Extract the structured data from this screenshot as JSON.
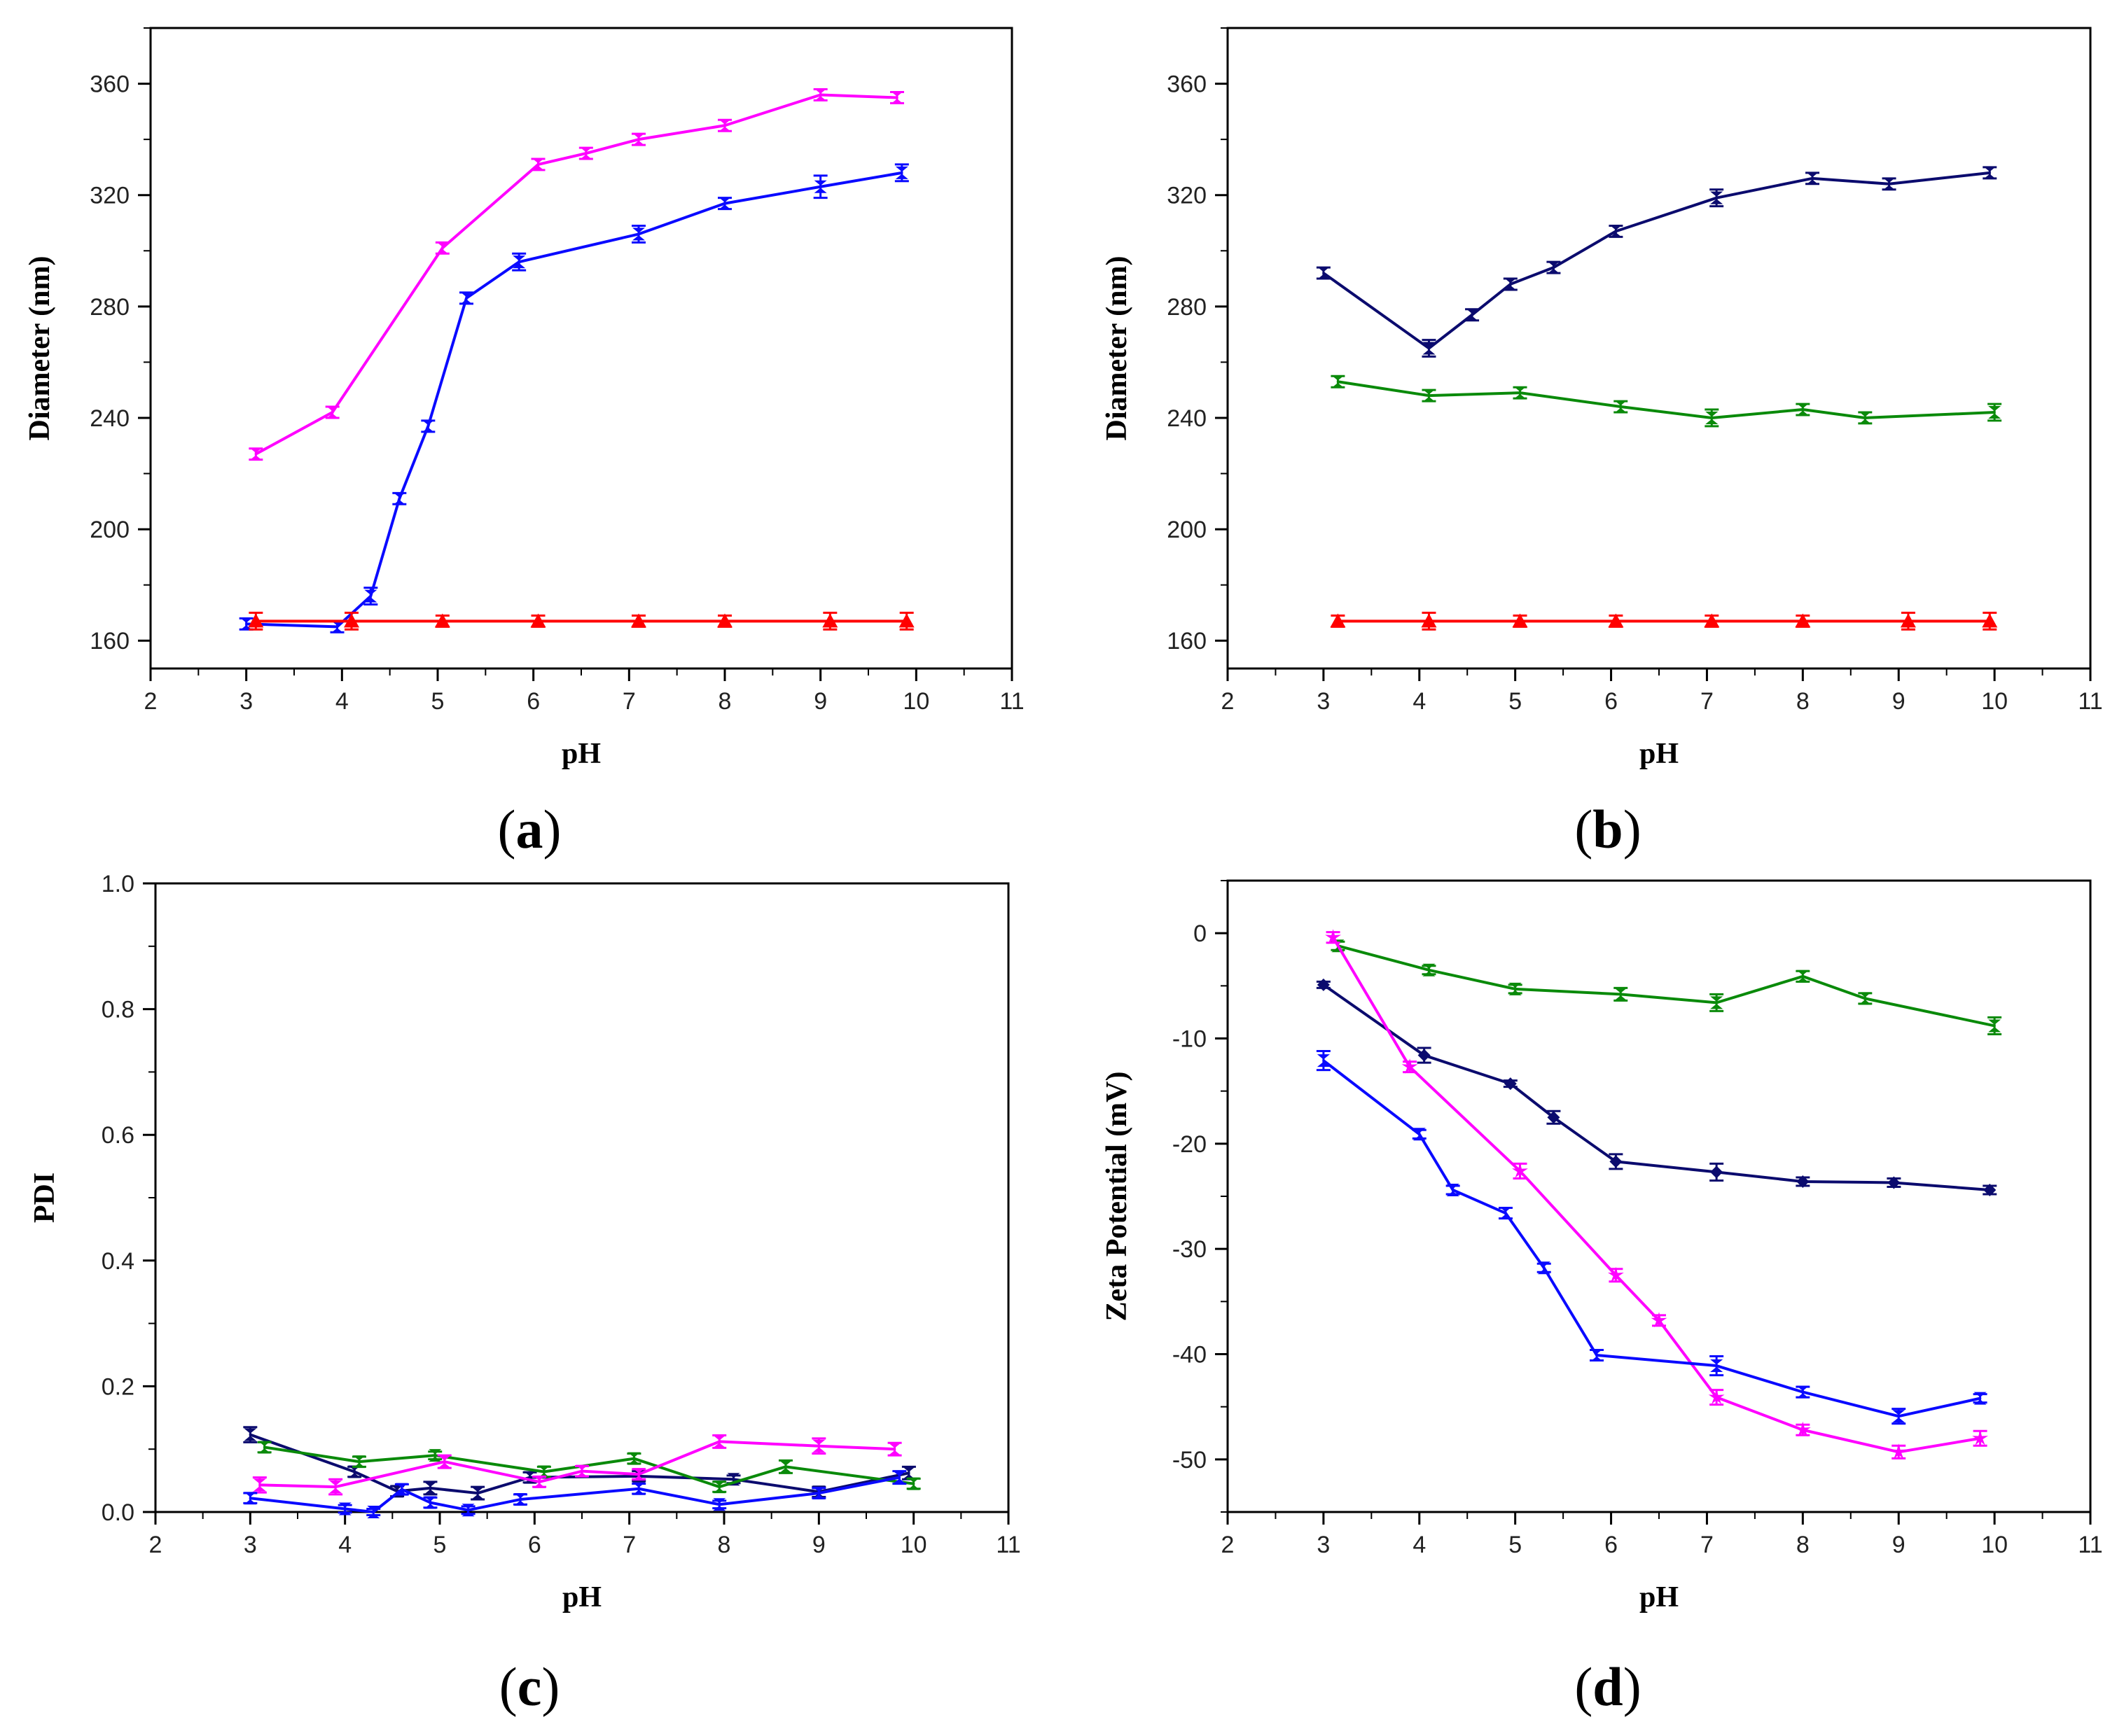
{
  "figure": {
    "colors": {
      "magenta": "#ff00ff",
      "blue": "#0a0aff",
      "red": "#ff0000",
      "navy": "#0b0b6e",
      "green": "#0a8a0a"
    }
  },
  "chart_data": [
    {
      "id": "a",
      "panel_label": "a",
      "type": "line",
      "xlabel": "pH",
      "ylabel": "Diameter (nm)",
      "xlim": [
        2,
        11
      ],
      "ylim": [
        150,
        380
      ],
      "xticks": [
        2,
        3,
        4,
        5,
        6,
        7,
        8,
        9,
        10,
        11
      ],
      "yticks": [
        160,
        200,
        240,
        280,
        320,
        360
      ],
      "series": [
        {
          "name": "magenta",
          "color": "#ff00ff",
          "marker": "hourglass",
          "x": [
            3.1,
            3.9,
            5.05,
            6.05,
            6.55,
            7.1,
            8.0,
            9.0,
            9.8
          ],
          "y": [
            227,
            242,
            301,
            331,
            335,
            340,
            345,
            356,
            355
          ],
          "err": [
            2,
            2,
            2,
            2,
            2,
            2,
            2,
            2,
            2
          ]
        },
        {
          "name": "blue",
          "color": "#0a0aff",
          "marker": "hourglass",
          "x": [
            3.0,
            3.95,
            4.3,
            4.6,
            4.9,
            5.3,
            5.85,
            7.1,
            8.0,
            9.0,
            9.85
          ],
          "y": [
            166,
            165,
            176,
            211,
            237,
            283,
            296,
            306,
            317,
            323,
            328
          ],
          "err": [
            2,
            2,
            3,
            2,
            2,
            2,
            3,
            3,
            2,
            4,
            3
          ]
        },
        {
          "name": "red",
          "color": "#ff0000",
          "marker": "triangle",
          "x": [
            3.1,
            4.1,
            5.05,
            6.05,
            7.1,
            8.0,
            9.1,
            9.9
          ],
          "y": [
            167,
            167,
            167,
            167,
            167,
            167,
            167,
            167
          ],
          "err": [
            3,
            3,
            2,
            2,
            2,
            2,
            3,
            3
          ]
        }
      ]
    },
    {
      "id": "b",
      "panel_label": "b",
      "type": "line",
      "xlabel": "pH",
      "ylabel": "Diameter (nm)",
      "xlim": [
        2,
        11
      ],
      "ylim": [
        150,
        380
      ],
      "xticks": [
        2,
        3,
        4,
        5,
        6,
        7,
        8,
        9,
        10,
        11
      ],
      "yticks": [
        160,
        200,
        240,
        280,
        320,
        360
      ],
      "series": [
        {
          "name": "navy",
          "color": "#0b0b6e",
          "marker": "hourglass",
          "x": [
            3.0,
            4.1,
            4.55,
            4.95,
            5.4,
            6.05,
            7.1,
            8.1,
            8.9,
            9.95
          ],
          "y": [
            292,
            265,
            277,
            288,
            294,
            307,
            319,
            326,
            324,
            328
          ],
          "err": [
            2,
            3,
            2,
            2,
            2,
            2,
            3,
            2,
            2,
            2
          ]
        },
        {
          "name": "green",
          "color": "#0a8a0a",
          "marker": "hourglass",
          "x": [
            3.15,
            4.1,
            5.05,
            6.1,
            7.05,
            8.0,
            8.65,
            10.0
          ],
          "y": [
            253,
            248,
            249,
            244,
            240,
            243,
            240,
            242
          ],
          "err": [
            2,
            2,
            2,
            2,
            3,
            2,
            2,
            3
          ]
        },
        {
          "name": "red",
          "color": "#ff0000",
          "marker": "triangle",
          "x": [
            3.15,
            4.1,
            5.05,
            6.05,
            7.05,
            8.0,
            9.1,
            9.95
          ],
          "y": [
            167,
            167,
            167,
            167,
            167,
            167,
            167,
            167
          ],
          "err": [
            2,
            3,
            2,
            2,
            2,
            2,
            3,
            3
          ]
        }
      ]
    },
    {
      "id": "c",
      "panel_label": "c",
      "type": "line",
      "xlabel": "pH",
      "ylabel": "PDI",
      "xlim": [
        2,
        11
      ],
      "ylim": [
        0.0,
        1.0
      ],
      "xticks": [
        2,
        3,
        4,
        5,
        6,
        7,
        8,
        9,
        10,
        11
      ],
      "yticks": [
        0.0,
        0.2,
        0.4,
        0.6,
        0.8,
        1.0
      ],
      "series": [
        {
          "name": "navy",
          "color": "#0b0b6e",
          "marker": "hourglass",
          "x": [
            3.0,
            4.1,
            4.55,
            4.9,
            5.4,
            5.95,
            7.1,
            8.1,
            9.0,
            9.95
          ],
          "y": [
            0.123,
            0.064,
            0.033,
            0.038,
            0.03,
            0.055,
            0.057,
            0.052,
            0.032,
            0.062
          ],
          "err": [
            0.012,
            0.008,
            0.008,
            0.01,
            0.01,
            0.008,
            0.008,
            0.006,
            0.008,
            0.01
          ]
        },
        {
          "name": "green",
          "color": "#0a8a0a",
          "marker": "hourglass",
          "x": [
            3.15,
            4.15,
            4.95,
            6.1,
            7.05,
            7.95,
            8.65,
            10.0
          ],
          "y": [
            0.103,
            0.08,
            0.09,
            0.064,
            0.085,
            0.04,
            0.072,
            0.045
          ],
          "err": [
            0.008,
            0.008,
            0.006,
            0.008,
            0.008,
            0.008,
            0.01,
            0.008
          ]
        },
        {
          "name": "magenta",
          "color": "#ff00ff",
          "marker": "hourglass",
          "x": [
            3.1,
            3.9,
            5.05,
            6.05,
            6.5,
            7.1,
            7.95,
            9.0,
            9.8
          ],
          "y": [
            0.043,
            0.04,
            0.08,
            0.048,
            0.065,
            0.06,
            0.112,
            0.105,
            0.1
          ],
          "err": [
            0.012,
            0.012,
            0.01,
            0.008,
            0.008,
            0.008,
            0.01,
            0.012,
            0.01
          ]
        },
        {
          "name": "blue",
          "color": "#0a0aff",
          "marker": "hourglass",
          "x": [
            3.0,
            4.0,
            4.3,
            4.6,
            4.9,
            5.3,
            5.85,
            7.1,
            7.95,
            9.0,
            9.85
          ],
          "y": [
            0.022,
            0.005,
            0.0,
            0.036,
            0.015,
            0.003,
            0.02,
            0.037,
            0.012,
            0.03,
            0.055
          ],
          "err": [
            0.008,
            0.006,
            0.005,
            0.008,
            0.008,
            0.006,
            0.008,
            0.008,
            0.006,
            0.008,
            0.01
          ]
        }
      ]
    },
    {
      "id": "d",
      "panel_label": "d",
      "type": "line",
      "xlabel": "pH",
      "ylabel": "Zeta Potential (mV)",
      "xlim": [
        2,
        11
      ],
      "ylim": [
        -55,
        5
      ],
      "xticks": [
        2,
        3,
        4,
        5,
        6,
        7,
        8,
        9,
        10,
        11
      ],
      "yticks": [
        0,
        -10,
        -20,
        -30,
        -40,
        -50
      ],
      "series": [
        {
          "name": "green",
          "color": "#0a8a0a",
          "marker": "hourglass",
          "x": [
            3.15,
            4.1,
            5.0,
            6.1,
            7.1,
            8.0,
            8.65,
            10.0
          ],
          "y": [
            -1.2,
            -3.5,
            -5.3,
            -5.8,
            -6.6,
            -4.1,
            -6.2,
            -8.8
          ],
          "err": [
            0.4,
            0.4,
            0.4,
            0.6,
            0.8,
            0.5,
            0.5,
            0.8
          ]
        },
        {
          "name": "navy",
          "color": "#0b0b6e",
          "marker": "diamond",
          "x": [
            3.0,
            4.05,
            4.95,
            5.4,
            6.05,
            7.1,
            8.0,
            8.95,
            9.95
          ],
          "y": [
            -4.9,
            -11.6,
            -14.3,
            -17.5,
            -21.7,
            -22.7,
            -23.6,
            -23.7,
            -24.4
          ],
          "err": [
            0.3,
            0.7,
            0.3,
            0.6,
            0.7,
            0.8,
            0.4,
            0.4,
            0.4
          ]
        },
        {
          "name": "magenta",
          "color": "#ff00ff",
          "marker": "star",
          "x": [
            3.1,
            3.9,
            5.05,
            6.05,
            6.5,
            7.1,
            8.0,
            9.0,
            9.85
          ],
          "y": [
            -0.4,
            -12.7,
            -22.6,
            -32.5,
            -36.8,
            -44.1,
            -47.2,
            -49.3,
            -48.0
          ],
          "err": [
            0.5,
            0.5,
            0.7,
            0.6,
            0.5,
            0.7,
            0.5,
            0.6,
            0.7
          ]
        },
        {
          "name": "blue",
          "color": "#0a0aff",
          "marker": "hourglass",
          "x": [
            3.0,
            4.0,
            4.35,
            4.9,
            5.3,
            5.85,
            7.1,
            8.0,
            9.0,
            9.85
          ],
          "y": [
            -12.1,
            -19.1,
            -24.4,
            -26.6,
            -31.8,
            -40.1,
            -41.1,
            -43.6,
            -45.9,
            -44.2
          ],
          "err": [
            0.9,
            0.4,
            0.4,
            0.5,
            0.4,
            0.5,
            0.9,
            0.5,
            0.7,
            0.4
          ]
        }
      ]
    }
  ]
}
